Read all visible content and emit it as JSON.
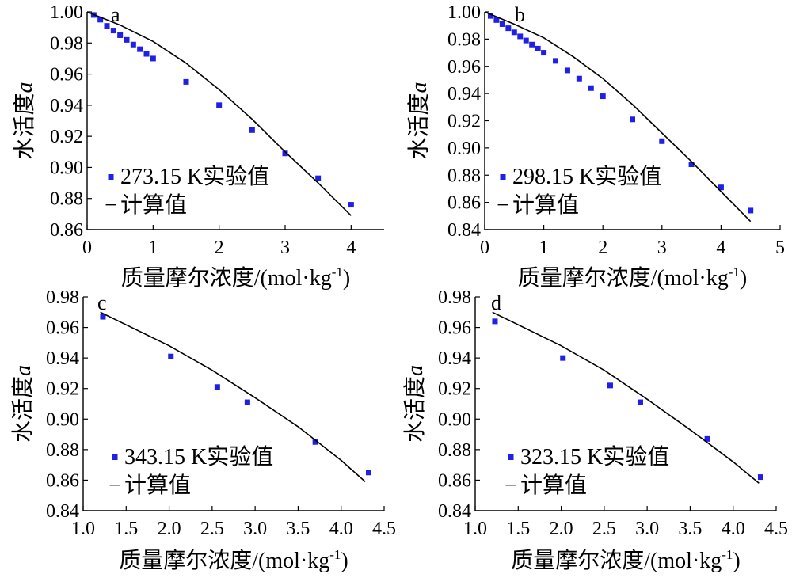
{
  "figure": {
    "ylabel_prefix": "水活度",
    "ylabel_symbol": "a",
    "xlabel": "质量摩尔浓度/(mol·kg",
    "xlabel_sup": "-1",
    "xlabel_suffix": ")",
    "legend_calc_symbol": "−",
    "legend_calc_label": "计算值"
  },
  "chart_data": [
    {
      "type": "scatter",
      "panel": "a",
      "xlim": [
        0,
        4.5
      ],
      "ylim": [
        0.86,
        1.0
      ],
      "xticks": [
        0,
        1,
        2,
        3,
        4
      ],
      "xtick_labels": [
        "0",
        "1",
        "2",
        "3",
        "4"
      ],
      "yticks": [
        0.86,
        0.88,
        0.9,
        0.92,
        0.94,
        0.96,
        0.98,
        1.0
      ],
      "ytick_labels": [
        "0.86",
        "0.88",
        "0.90",
        "0.92",
        "0.94",
        "0.96",
        "0.98",
        "1.00"
      ],
      "series": [
        {
          "name": "273.15 K实验值",
          "kind": "points",
          "color": "#1f1fe6",
          "x": [
            0.1,
            0.2,
            0.3,
            0.4,
            0.5,
            0.6,
            0.7,
            0.8,
            0.9,
            1.0,
            1.5,
            2.0,
            2.5,
            3.0,
            3.5,
            4.0
          ],
          "y": [
            0.998,
            0.995,
            0.991,
            0.988,
            0.985,
            0.982,
            0.979,
            0.976,
            0.973,
            0.97,
            0.955,
            0.94,
            0.924,
            0.909,
            0.893,
            0.876
          ]
        },
        {
          "name": "计算值",
          "kind": "line",
          "color": "#000000",
          "x": [
            0,
            0.5,
            1.0,
            1.5,
            2.0,
            2.5,
            3.0,
            3.5,
            4.0
          ],
          "y": [
            1.0,
            0.9915,
            0.981,
            0.967,
            0.95,
            0.931,
            0.91,
            0.89,
            0.869
          ]
        }
      ]
    },
    {
      "type": "scatter",
      "panel": "b",
      "xlim": [
        0,
        5
      ],
      "ylim": [
        0.84,
        1.0
      ],
      "xticks": [
        0,
        1,
        2,
        3,
        4,
        5
      ],
      "xtick_labels": [
        "0",
        "1",
        "2",
        "3",
        "4",
        "5"
      ],
      "yticks": [
        0.84,
        0.86,
        0.88,
        0.9,
        0.92,
        0.94,
        0.96,
        0.98,
        1.0
      ],
      "ytick_labels": [
        "0.84",
        "0.86",
        "0.88",
        "0.90",
        "0.92",
        "0.94",
        "0.96",
        "0.98",
        "1.00"
      ],
      "series": [
        {
          "name": "298.15 K实验值",
          "kind": "points",
          "color": "#1f1fe6",
          "x": [
            0.1,
            0.2,
            0.3,
            0.4,
            0.5,
            0.6,
            0.7,
            0.8,
            0.9,
            1.0,
            1.2,
            1.4,
            1.6,
            1.8,
            2.0,
            2.5,
            3.0,
            3.5,
            4.0,
            4.5
          ],
          "y": [
            0.997,
            0.994,
            0.991,
            0.988,
            0.985,
            0.982,
            0.979,
            0.976,
            0.973,
            0.97,
            0.964,
            0.957,
            0.951,
            0.944,
            0.938,
            0.921,
            0.905,
            0.888,
            0.871,
            0.854
          ]
        },
        {
          "name": "计算值",
          "kind": "line",
          "color": "#000000",
          "x": [
            0,
            0.5,
            1.0,
            1.5,
            2.0,
            2.5,
            3.0,
            3.5,
            4.0,
            4.5
          ],
          "y": [
            1.0,
            0.991,
            0.981,
            0.967,
            0.951,
            0.932,
            0.911,
            0.89,
            0.868,
            0.846
          ]
        }
      ]
    },
    {
      "type": "scatter",
      "panel": "c",
      "xlim": [
        1.0,
        4.5
      ],
      "ylim": [
        0.84,
        0.98
      ],
      "xticks": [
        1.0,
        1.5,
        2.0,
        2.5,
        3.0,
        3.5,
        4.0,
        4.5
      ],
      "xtick_labels": [
        "1.0",
        "1.5",
        "2.0",
        "2.5",
        "3.0",
        "3.5",
        "4.0",
        "4.5"
      ],
      "yticks": [
        0.84,
        0.86,
        0.88,
        0.9,
        0.92,
        0.94,
        0.96,
        0.98
      ],
      "ytick_labels": [
        "0.84",
        "0.86",
        "0.88",
        "0.90",
        "0.92",
        "0.94",
        "0.96",
        "0.98"
      ],
      "series": [
        {
          "name": "343.15 K实验值",
          "kind": "points",
          "color": "#1f1fe6",
          "x": [
            1.23,
            2.02,
            2.56,
            2.91,
            3.7,
            4.32
          ],
          "y": [
            0.967,
            0.941,
            0.921,
            0.911,
            0.885,
            0.865
          ]
        },
        {
          "name": "计算值",
          "kind": "line",
          "color": "#000000",
          "x": [
            1.2,
            2.0,
            2.5,
            3.0,
            3.5,
            4.0,
            4.28
          ],
          "y": [
            0.97,
            0.948,
            0.932,
            0.914,
            0.895,
            0.873,
            0.859
          ]
        }
      ]
    },
    {
      "type": "scatter",
      "panel": "d",
      "xlim": [
        1.0,
        4.5
      ],
      "ylim": [
        0.84,
        0.98
      ],
      "xticks": [
        1.0,
        1.5,
        2.0,
        2.5,
        3.0,
        3.5,
        4.0,
        4.5
      ],
      "xtick_labels": [
        "1.0",
        "1.5",
        "2.0",
        "2.5",
        "3.0",
        "3.5",
        "4.0",
        "4.5"
      ],
      "yticks": [
        0.84,
        0.86,
        0.88,
        0.9,
        0.92,
        0.94,
        0.96,
        0.98
      ],
      "ytick_labels": [
        "0.84",
        "0.86",
        "0.88",
        "0.90",
        "0.92",
        "0.94",
        "0.96",
        "0.98"
      ],
      "series": [
        {
          "name": "323.15 K实验值",
          "kind": "points",
          "color": "#1f1fe6",
          "x": [
            1.23,
            2.02,
            2.57,
            2.92,
            3.7,
            4.32
          ],
          "y": [
            0.964,
            0.94,
            0.922,
            0.911,
            0.887,
            0.862
          ]
        },
        {
          "name": "计算值",
          "kind": "line",
          "color": "#000000",
          "x": [
            1.2,
            2.0,
            2.5,
            3.0,
            3.5,
            4.0,
            4.3
          ],
          "y": [
            0.97,
            0.948,
            0.932,
            0.913,
            0.893,
            0.872,
            0.858
          ]
        }
      ]
    }
  ]
}
